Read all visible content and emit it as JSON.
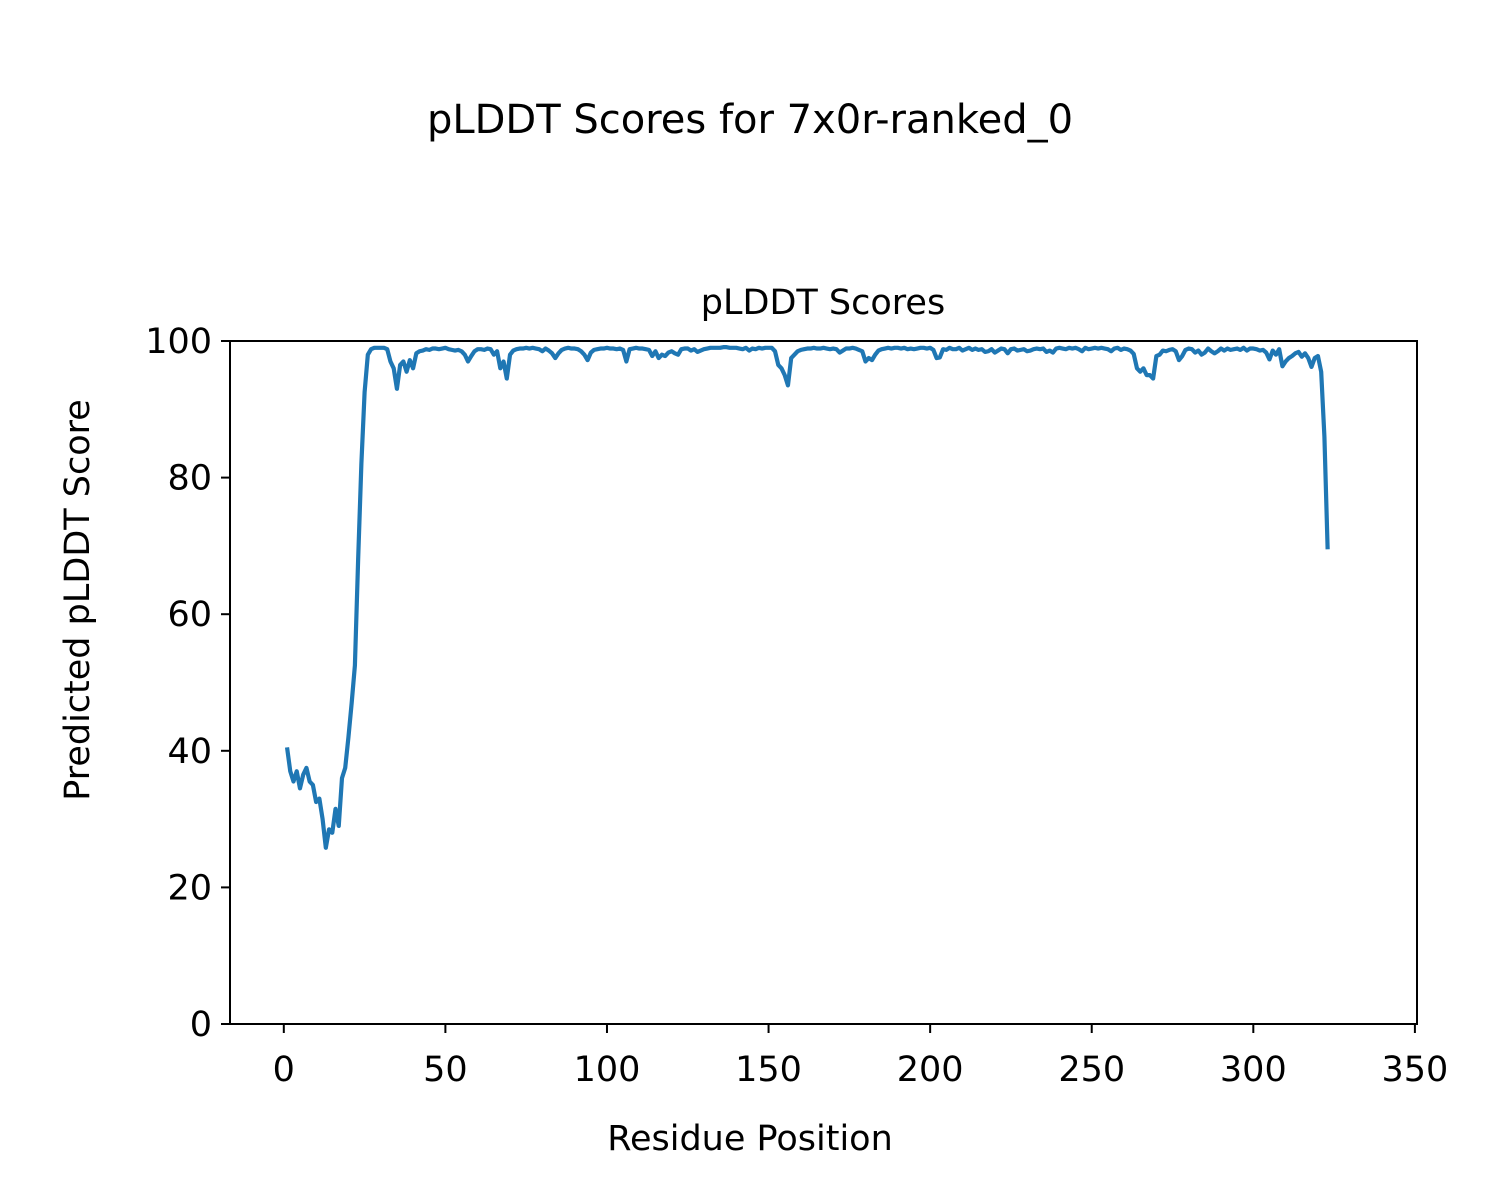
{
  "chart_data": {
    "type": "line",
    "suptitle": "pLDDT Scores for 7x0r-ranked_0",
    "title": "pLDDT Scores",
    "xlabel": "Residue Position",
    "ylabel": "Predicted pLDDT Score",
    "xlim": [
      -16.65,
      350.65
    ],
    "ylim": [
      0,
      100
    ],
    "xticks": [
      0,
      50,
      100,
      150,
      200,
      250,
      300,
      350
    ],
    "yticks": [
      0,
      20,
      40,
      60,
      80,
      100
    ],
    "xtick_labels": [
      "0",
      "50",
      "100",
      "150",
      "200",
      "250",
      "300",
      "350"
    ],
    "ytick_labels": [
      "0",
      "20",
      "40",
      "60",
      "80",
      "100"
    ],
    "grid": false,
    "legend": null,
    "series": [
      {
        "color": "#1f77b4",
        "points": [
          [
            1,
            40.5
          ],
          [
            2,
            37.0
          ],
          [
            3,
            35.5
          ],
          [
            4,
            37.0
          ],
          [
            5,
            34.5
          ],
          [
            6,
            36.5
          ],
          [
            7,
            37.5
          ],
          [
            8,
            35.5
          ],
          [
            9,
            35.0
          ],
          [
            10,
            32.5
          ],
          [
            11,
            33.0
          ],
          [
            12,
            30.0
          ],
          [
            13,
            25.8
          ],
          [
            14,
            28.5
          ],
          [
            15,
            28.0
          ],
          [
            16,
            31.5
          ],
          [
            17,
            29.0
          ],
          [
            18,
            36.0
          ],
          [
            19,
            37.5
          ],
          [
            20,
            42.0
          ],
          [
            21,
            47.0
          ],
          [
            22,
            52.5
          ],
          [
            23,
            68.0
          ],
          [
            24,
            82.0
          ],
          [
            25,
            92.5
          ],
          [
            26,
            98.0
          ],
          [
            27,
            98.8
          ],
          [
            28,
            99.0
          ],
          [
            29,
            99.0
          ],
          [
            30,
            99.0
          ],
          [
            31,
            99.0
          ],
          [
            32,
            98.8
          ],
          [
            33,
            97.0
          ],
          [
            34,
            96.0
          ],
          [
            35,
            93.0
          ],
          [
            36,
            96.5
          ],
          [
            37,
            97.0
          ],
          [
            38,
            95.5
          ],
          [
            39,
            97.2
          ],
          [
            40,
            96.0
          ],
          [
            41,
            98.2
          ],
          [
            42,
            98.5
          ],
          [
            43,
            98.6
          ],
          [
            44,
            98.8
          ],
          [
            45,
            98.7
          ],
          [
            46,
            98.9
          ],
          [
            47,
            98.9
          ],
          [
            48,
            98.8
          ],
          [
            49,
            98.9
          ],
          [
            50,
            99.0
          ],
          [
            51,
            98.8
          ],
          [
            52,
            98.7
          ],
          [
            53,
            98.6
          ],
          [
            54,
            98.7
          ],
          [
            55,
            98.5
          ],
          [
            56,
            98.0
          ],
          [
            57,
            97.0
          ],
          [
            58,
            97.8
          ],
          [
            59,
            98.5
          ],
          [
            60,
            98.8
          ],
          [
            61,
            98.8
          ],
          [
            62,
            98.7
          ],
          [
            63,
            98.9
          ],
          [
            64,
            98.8
          ],
          [
            65,
            98.0
          ],
          [
            66,
            98.5
          ],
          [
            67,
            96.0
          ],
          [
            68,
            97.0
          ],
          [
            69,
            94.5
          ],
          [
            70,
            98.0
          ],
          [
            71,
            98.6
          ],
          [
            72,
            98.8
          ],
          [
            73,
            98.9
          ],
          [
            74,
            98.9
          ],
          [
            75,
            99.0
          ],
          [
            76,
            98.9
          ],
          [
            77,
            99.0
          ],
          [
            78,
            98.9
          ],
          [
            79,
            98.8
          ],
          [
            80,
            98.5
          ],
          [
            81,
            98.9
          ],
          [
            82,
            98.6
          ],
          [
            83,
            98.2
          ],
          [
            84,
            97.5
          ],
          [
            85,
            98.2
          ],
          [
            86,
            98.7
          ],
          [
            87,
            98.9
          ],
          [
            88,
            99.0
          ],
          [
            89,
            98.9
          ],
          [
            90,
            98.9
          ],
          [
            91,
            98.8
          ],
          [
            92,
            98.5
          ],
          [
            93,
            98.0
          ],
          [
            94,
            97.2
          ],
          [
            95,
            98.3
          ],
          [
            96,
            98.7
          ],
          [
            97,
            98.8
          ],
          [
            98,
            98.9
          ],
          [
            99,
            98.9
          ],
          [
            100,
            99.0
          ],
          [
            101,
            98.9
          ],
          [
            102,
            98.9
          ],
          [
            103,
            98.8
          ],
          [
            104,
            98.9
          ],
          [
            105,
            98.7
          ],
          [
            106,
            97.0
          ],
          [
            107,
            98.8
          ],
          [
            108,
            98.9
          ],
          [
            109,
            99.0
          ],
          [
            110,
            98.9
          ],
          [
            111,
            98.9
          ],
          [
            112,
            98.8
          ],
          [
            113,
            98.7
          ],
          [
            114,
            97.8
          ],
          [
            115,
            98.5
          ],
          [
            116,
            97.5
          ],
          [
            117,
            98.0
          ],
          [
            118,
            97.8
          ],
          [
            119,
            98.3
          ],
          [
            120,
            98.5
          ],
          [
            121,
            98.2
          ],
          [
            122,
            98.0
          ],
          [
            123,
            98.8
          ],
          [
            124,
            98.9
          ],
          [
            125,
            98.9
          ],
          [
            126,
            98.6
          ],
          [
            127,
            98.8
          ],
          [
            128,
            98.4
          ],
          [
            129,
            98.6
          ],
          [
            130,
            98.8
          ],
          [
            131,
            98.9
          ],
          [
            132,
            99.0
          ],
          [
            133,
            99.0
          ],
          [
            134,
            99.0
          ],
          [
            135,
            99.0
          ],
          [
            136,
            99.1
          ],
          [
            137,
            99.1
          ],
          [
            138,
            99.0
          ],
          [
            139,
            99.0
          ],
          [
            140,
            99.0
          ],
          [
            141,
            98.9
          ],
          [
            142,
            98.8
          ],
          [
            143,
            99.0
          ],
          [
            144,
            98.6
          ],
          [
            145,
            98.9
          ],
          [
            146,
            98.8
          ],
          [
            147,
            99.0
          ],
          [
            148,
            98.9
          ],
          [
            149,
            99.0
          ],
          [
            150,
            99.0
          ],
          [
            151,
            99.0
          ],
          [
            152,
            98.5
          ],
          [
            153,
            96.5
          ],
          [
            154,
            96.0
          ],
          [
            155,
            95.0
          ],
          [
            156,
            93.5
          ],
          [
            157,
            97.5
          ],
          [
            158,
            98.0
          ],
          [
            159,
            98.5
          ],
          [
            160,
            98.7
          ],
          [
            161,
            98.8
          ],
          [
            162,
            98.9
          ],
          [
            163,
            98.9
          ],
          [
            164,
            99.0
          ],
          [
            165,
            98.9
          ],
          [
            166,
            98.9
          ],
          [
            167,
            99.0
          ],
          [
            168,
            98.9
          ],
          [
            169,
            98.8
          ],
          [
            170,
            98.9
          ],
          [
            171,
            98.8
          ],
          [
            172,
            98.3
          ],
          [
            173,
            98.6
          ],
          [
            174,
            98.9
          ],
          [
            175,
            98.9
          ],
          [
            176,
            99.0
          ],
          [
            177,
            98.9
          ],
          [
            178,
            98.7
          ],
          [
            179,
            98.5
          ],
          [
            180,
            97.0
          ],
          [
            181,
            97.5
          ],
          [
            182,
            97.2
          ],
          [
            183,
            98.0
          ],
          [
            184,
            98.6
          ],
          [
            185,
            98.8
          ],
          [
            186,
            98.9
          ],
          [
            187,
            99.0
          ],
          [
            188,
            98.9
          ],
          [
            189,
            99.0
          ],
          [
            190,
            99.0
          ],
          [
            191,
            98.9
          ],
          [
            192,
            99.0
          ],
          [
            193,
            98.8
          ],
          [
            194,
            98.9
          ],
          [
            195,
            98.8
          ],
          [
            196,
            98.9
          ],
          [
            197,
            99.0
          ],
          [
            198,
            99.0
          ],
          [
            199,
            98.9
          ],
          [
            200,
            99.0
          ],
          [
            201,
            98.7
          ],
          [
            202,
            97.5
          ],
          [
            203,
            97.6
          ],
          [
            204,
            98.8
          ],
          [
            205,
            98.7
          ],
          [
            206,
            99.0
          ],
          [
            207,
            98.8
          ],
          [
            208,
            98.8
          ],
          [
            209,
            99.0
          ],
          [
            210,
            98.6
          ],
          [
            211,
            98.8
          ],
          [
            212,
            99.0
          ],
          [
            213,
            98.7
          ],
          [
            214,
            98.9
          ],
          [
            215,
            98.7
          ],
          [
            216,
            98.8
          ],
          [
            217,
            98.4
          ],
          [
            218,
            98.5
          ],
          [
            219,
            98.8
          ],
          [
            220,
            98.3
          ],
          [
            221,
            98.6
          ],
          [
            222,
            98.9
          ],
          [
            223,
            98.8
          ],
          [
            224,
            98.2
          ],
          [
            225,
            98.8
          ],
          [
            226,
            98.9
          ],
          [
            227,
            98.6
          ],
          [
            228,
            98.7
          ],
          [
            229,
            98.8
          ],
          [
            230,
            98.5
          ],
          [
            231,
            98.6
          ],
          [
            232,
            98.8
          ],
          [
            233,
            98.9
          ],
          [
            234,
            98.8
          ],
          [
            235,
            98.9
          ],
          [
            236,
            98.4
          ],
          [
            237,
            98.6
          ],
          [
            238,
            98.3
          ],
          [
            239,
            98.9
          ],
          [
            240,
            99.0
          ],
          [
            241,
            98.9
          ],
          [
            242,
            98.8
          ],
          [
            243,
            99.0
          ],
          [
            244,
            98.9
          ],
          [
            245,
            99.0
          ],
          [
            246,
            98.8
          ],
          [
            247,
            98.5
          ],
          [
            248,
            99.0
          ],
          [
            249,
            98.8
          ],
          [
            250,
            98.9
          ],
          [
            251,
            99.0
          ],
          [
            252,
            98.9
          ],
          [
            253,
            99.0
          ],
          [
            254,
            98.9
          ],
          [
            255,
            98.8
          ],
          [
            256,
            98.5
          ],
          [
            257,
            98.9
          ],
          [
            258,
            99.0
          ],
          [
            259,
            98.7
          ],
          [
            260,
            98.9
          ],
          [
            261,
            98.8
          ],
          [
            262,
            98.6
          ],
          [
            263,
            98.1
          ],
          [
            264,
            96.0
          ],
          [
            265,
            95.5
          ],
          [
            266,
            96.0
          ],
          [
            267,
            95.0
          ],
          [
            268,
            95.0
          ],
          [
            269,
            94.5
          ],
          [
            270,
            97.8
          ],
          [
            271,
            98.0
          ],
          [
            272,
            98.6
          ],
          [
            273,
            98.5
          ],
          [
            274,
            98.7
          ],
          [
            275,
            98.8
          ],
          [
            276,
            98.5
          ],
          [
            277,
            97.2
          ],
          [
            278,
            97.8
          ],
          [
            279,
            98.7
          ],
          [
            280,
            98.9
          ],
          [
            281,
            98.8
          ],
          [
            282,
            98.3
          ],
          [
            283,
            98.6
          ],
          [
            284,
            98.0
          ],
          [
            285,
            98.3
          ],
          [
            286,
            98.9
          ],
          [
            287,
            98.5
          ],
          [
            288,
            98.2
          ],
          [
            289,
            98.5
          ],
          [
            290,
            98.9
          ],
          [
            291,
            98.6
          ],
          [
            292,
            98.9
          ],
          [
            293,
            98.7
          ],
          [
            294,
            98.8
          ],
          [
            295,
            98.9
          ],
          [
            296,
            98.7
          ],
          [
            297,
            99.0
          ],
          [
            298,
            98.6
          ],
          [
            299,
            98.9
          ],
          [
            300,
            98.9
          ],
          [
            301,
            98.8
          ],
          [
            302,
            98.6
          ],
          [
            303,
            98.7
          ],
          [
            304,
            98.3
          ],
          [
            305,
            97.3
          ],
          [
            306,
            98.6
          ],
          [
            307,
            98.0
          ],
          [
            308,
            98.8
          ],
          [
            309,
            96.3
          ],
          [
            310,
            97.0
          ],
          [
            311,
            97.5
          ],
          [
            312,
            97.8
          ],
          [
            313,
            98.2
          ],
          [
            314,
            98.4
          ],
          [
            315,
            97.7
          ],
          [
            316,
            98.2
          ],
          [
            317,
            97.5
          ],
          [
            318,
            96.2
          ],
          [
            319,
            97.5
          ],
          [
            320,
            97.8
          ],
          [
            321,
            95.5
          ],
          [
            322,
            86.0
          ],
          [
            323,
            69.5
          ]
        ]
      }
    ]
  }
}
